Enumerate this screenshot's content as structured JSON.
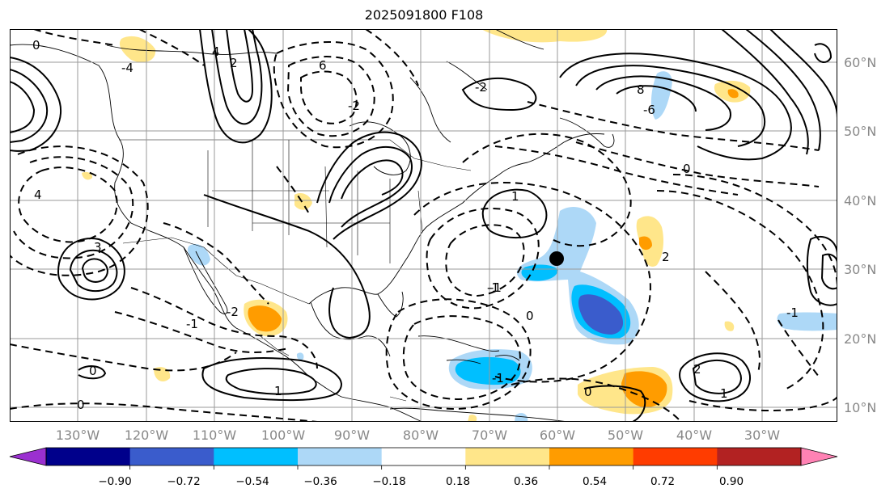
{
  "title": "2025091800 F108",
  "map": {
    "lat_labels": [
      "60°N",
      "50°N",
      "40°N",
      "30°N",
      "20°N",
      "10°N"
    ],
    "lon_labels": [
      "130°W",
      "120°W",
      "110°W",
      "100°W",
      "90°W",
      "80°W",
      "70°W",
      "60°W",
      "50°W",
      "40°W",
      "30°W"
    ],
    "contour_labels": [
      "0",
      "2",
      "4",
      "6",
      "-2",
      "-4",
      "-6",
      "1",
      "-1",
      "2",
      "8",
      "-2",
      "0",
      "-1",
      "1",
      "0",
      "-1",
      "0",
      "1",
      "-1",
      "0",
      "2",
      "4",
      "3",
      "-2",
      "-1",
      "0"
    ],
    "marker": "storm-position-dot"
  },
  "colorbar": {
    "ticks": [
      "−0.90",
      "−0.72",
      "−0.54",
      "−0.36",
      "−0.18",
      "0.18",
      "0.36",
      "0.54",
      "0.72",
      "0.90"
    ],
    "colors": [
      "#9b30d0",
      "#00008b",
      "#3a5ccc",
      "#00bfff",
      "#add8f7",
      "#ffffff",
      "#ffe68a",
      "#ff9c00",
      "#ff3c00",
      "#b22222",
      "#ff82b4"
    ]
  }
}
